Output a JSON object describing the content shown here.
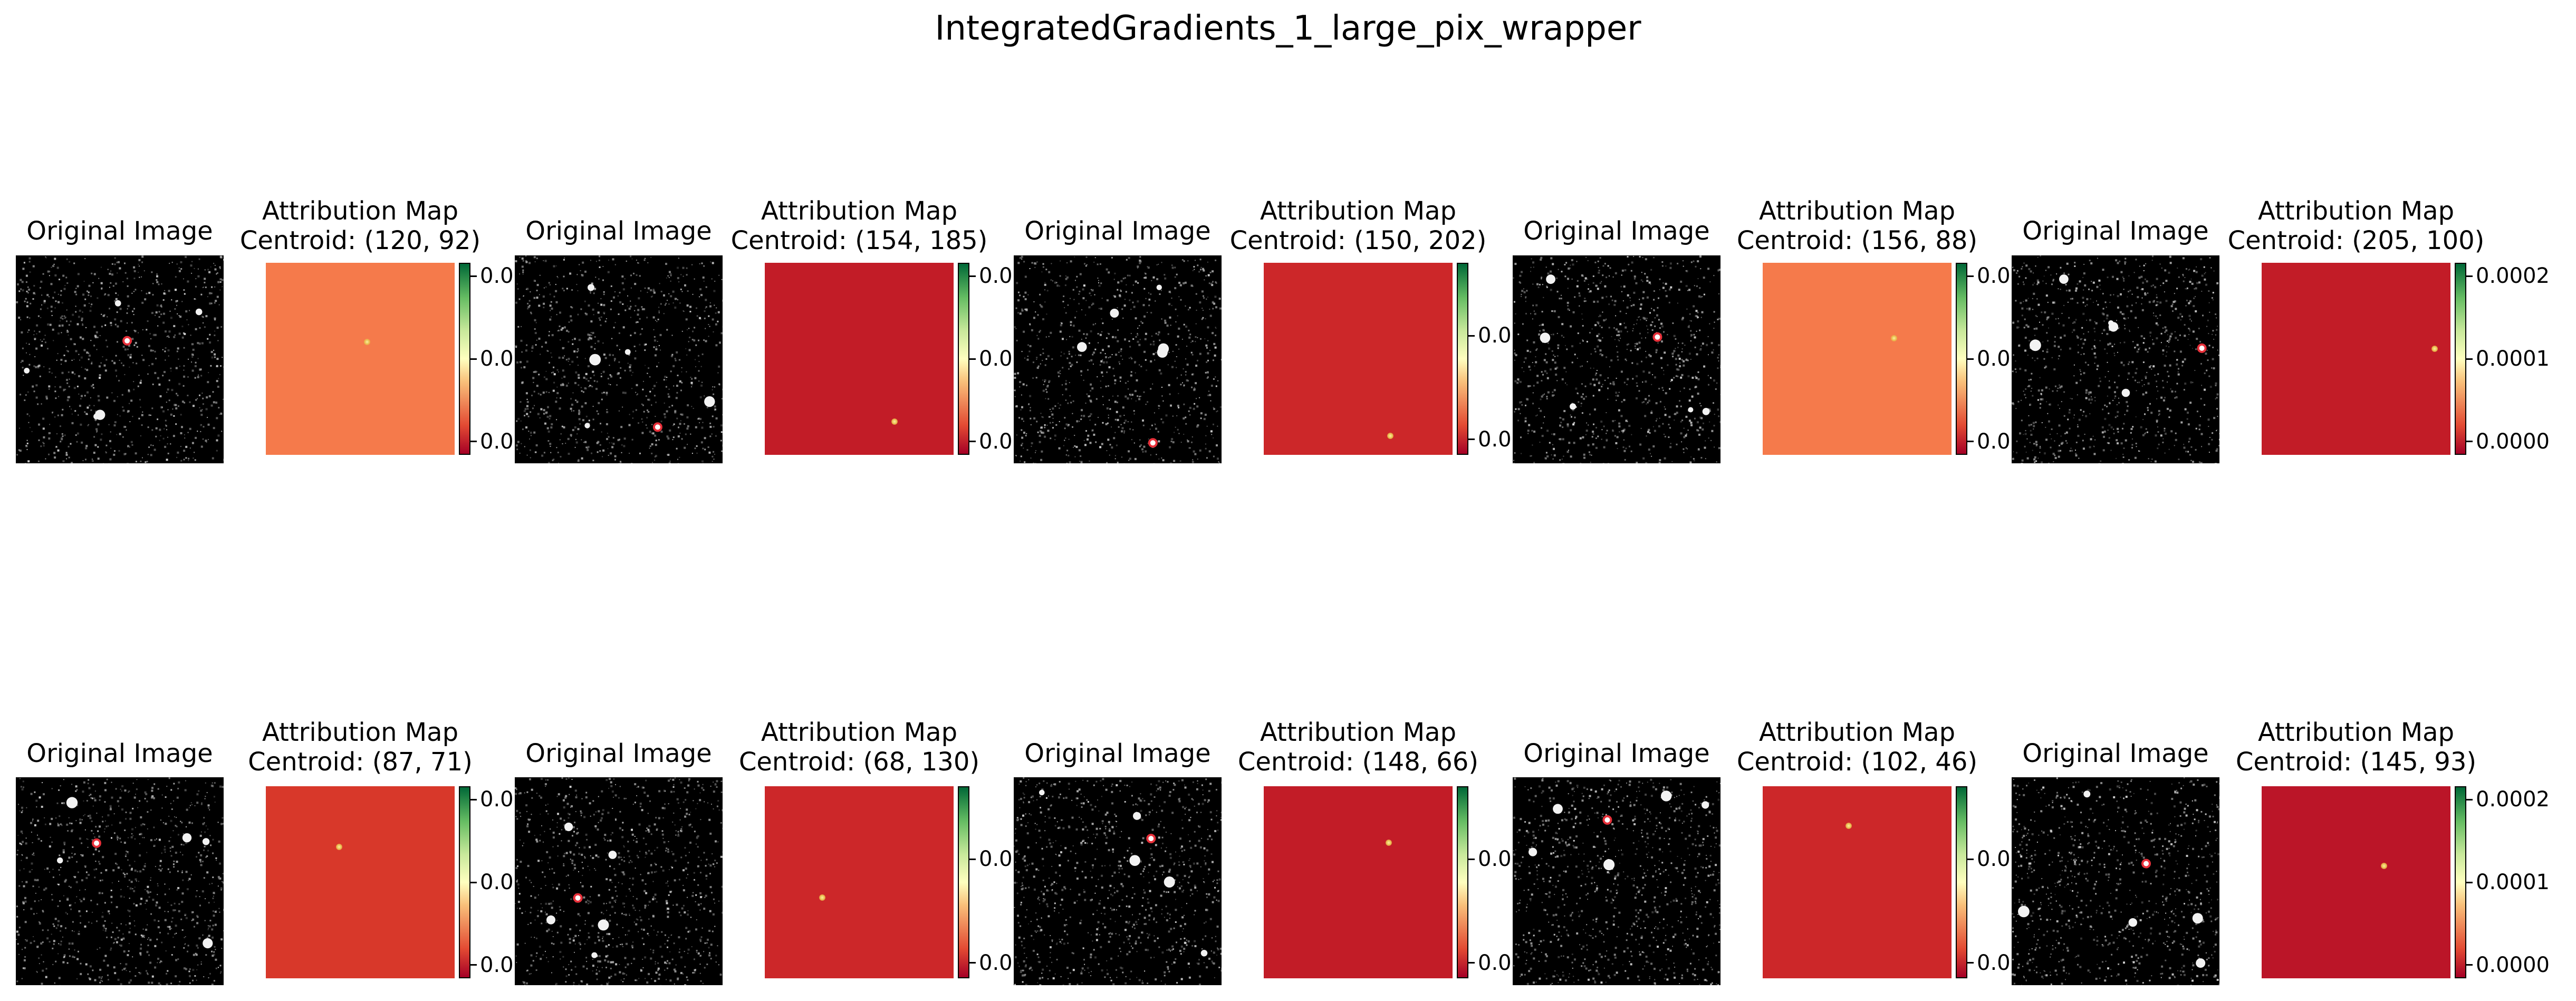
{
  "figure": {
    "title": "IntegratedGradients_1_large_pix_wrapper"
  },
  "colors": {
    "original_background": "#000000",
    "noise": "#c8c8c8",
    "cmap": "RdYlGn"
  },
  "chart_data": {
    "type": "heatmap",
    "layout": {
      "rows": 2,
      "pairs_per_row": 5
    },
    "panels": [
      {
        "original_title": "Original Image",
        "attribution_title": "Attribution Map\nCentroid: (120, 92)",
        "centroid": [
          120,
          92
        ],
        "map_color": "#f57a4b",
        "colorbar_ticks": [
          "0.0",
          "0.0",
          "0.0"
        ],
        "colorbar_ticks_truncated": true
      },
      {
        "original_title": "Original Image",
        "attribution_title": "Attribution Map\nCentroid: (154, 185)",
        "centroid": [
          154,
          185
        ],
        "map_color": "#c21c27",
        "colorbar_ticks": [
          "0.0",
          "0.0",
          "0.0"
        ],
        "colorbar_ticks_truncated": true
      },
      {
        "original_title": "Original Image",
        "attribution_title": "Attribution Map\nCentroid: (150, 202)",
        "centroid": [
          150,
          202
        ],
        "map_color": "#cc2729",
        "colorbar_ticks": [
          "0.0",
          "0.0"
        ],
        "colorbar_ticks_truncated": true
      },
      {
        "original_title": "Original Image",
        "attribution_title": "Attribution Map\nCentroid: (156, 88)",
        "centroid": [
          156,
          88
        ],
        "map_color": "#f57a4b",
        "colorbar_ticks": [
          "0.0",
          "0.0",
          "0.0"
        ],
        "colorbar_ticks_truncated": true
      },
      {
        "original_title": "Original Image",
        "attribution_title": "Attribution Map\nCentroid: (205, 100)",
        "centroid": [
          205,
          100
        ],
        "map_color": "#c21c27",
        "colorbar_ticks": [
          "0.0002",
          "0.0001",
          "0.0000"
        ],
        "colorbar_ticks_truncated": false
      },
      {
        "original_title": "Original Image",
        "attribution_title": "Attribution Map\nCentroid: (87, 71)",
        "centroid": [
          87,
          71
        ],
        "map_color": "#d8382a",
        "colorbar_ticks": [
          "0.0",
          "0.0",
          "0.0"
        ],
        "colorbar_ticks_truncated": true
      },
      {
        "original_title": "Original Image",
        "attribution_title": "Attribution Map\nCentroid: (68, 130)",
        "centroid": [
          68,
          130
        ],
        "map_color": "#cc2729",
        "colorbar_ticks": [
          "0.0",
          "0.0"
        ],
        "colorbar_ticks_truncated": true
      },
      {
        "original_title": "Original Image",
        "attribution_title": "Attribution Map\nCentroid: (148, 66)",
        "centroid": [
          148,
          66
        ],
        "map_color": "#c21c27",
        "colorbar_ticks": [
          "0.0",
          "0.0"
        ],
        "colorbar_ticks_truncated": true
      },
      {
        "original_title": "Original Image",
        "attribution_title": "Attribution Map\nCentroid: (102, 46)",
        "centroid": [
          102,
          46
        ],
        "map_color": "#cc2729",
        "colorbar_ticks": [
          "0.0",
          "0.0"
        ],
        "colorbar_ticks_truncated": true
      },
      {
        "original_title": "Original Image",
        "attribution_title": "Attribution Map\nCentroid: (145, 93)",
        "centroid": [
          145,
          93
        ],
        "map_color": "#bb1528",
        "colorbar_ticks": [
          "0.0002",
          "0.0001",
          "0.0000"
        ],
        "colorbar_ticks_truncated": false
      }
    ]
  }
}
